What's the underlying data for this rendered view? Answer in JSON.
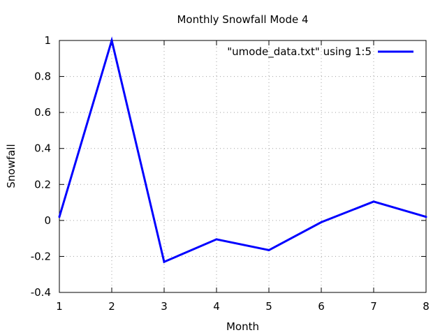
{
  "chart_data": {
    "type": "line",
    "title": "Monthly Snowfall Mode 4",
    "xlabel": "Month",
    "ylabel": "Snowfall",
    "xlim": [
      1,
      8
    ],
    "ylim": [
      -0.4,
      1
    ],
    "xticks": [
      "1",
      "2",
      "3",
      "4",
      "5",
      "6",
      "7",
      "8"
    ],
    "yticks": [
      "-0.4",
      "-0.2",
      "0",
      "0.2",
      "0.4",
      "0.6",
      "0.8",
      "1"
    ],
    "grid": true,
    "legend_position": "top-right",
    "series": [
      {
        "name": "\"umode_data.txt\" using 1:5",
        "color": "#0000ff",
        "x": [
          1,
          2,
          3,
          4,
          5,
          6,
          7,
          8
        ],
        "y": [
          0.02,
          1.0,
          -0.23,
          -0.105,
          -0.165,
          -0.01,
          0.105,
          0.02
        ]
      }
    ]
  }
}
